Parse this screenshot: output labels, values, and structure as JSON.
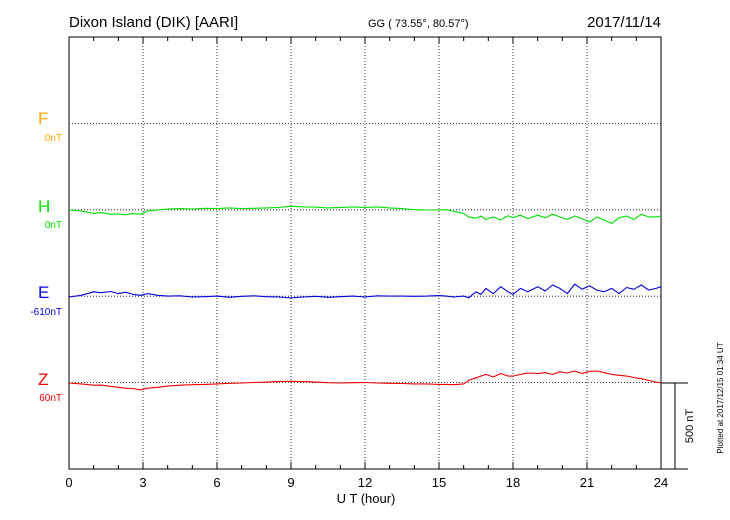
{
  "header": {
    "station": "Dixon Island (DIK)  [AARI]",
    "coords": "GG ( 73.55°,  80.57°)",
    "date": "2017/11/14"
  },
  "plotted_note": "Plotted at 2017/12/15 01:34 UT",
  "scale_label": "500 nT",
  "colors": {
    "F": "#ffa500",
    "H": "#00e000",
    "E": "#0000dd",
    "Z": "#ee0000"
  },
  "chart_data": {
    "type": "line",
    "xlabel": "U T (hour)",
    "xlim": [
      0,
      24
    ],
    "x_ticks": [
      "0",
      "3",
      "6",
      "9",
      "12",
      "15",
      "18",
      "21",
      "24"
    ],
    "grid": true,
    "scale_bar_nT": 500,
    "components": [
      {
        "name": "F",
        "baseline": "0nT",
        "color": "#ffa500",
        "values": []
      },
      {
        "name": "H",
        "baseline": "0nT",
        "color": "#00e000"
      },
      {
        "name": "E",
        "baseline": "-610nT",
        "color": "#0000dd"
      },
      {
        "name": "Z",
        "baseline": "60nT",
        "color": "#ee0000"
      }
    ],
    "series": [
      {
        "name": "H",
        "color": "#00e000",
        "x": [
          0,
          0.5,
          1,
          1.3,
          1.7,
          2,
          2.3,
          2.6,
          2.9,
          3.2,
          3.6,
          4,
          4.5,
          5,
          5.5,
          6,
          6.5,
          7,
          7.5,
          8,
          8.5,
          9,
          9.5,
          10,
          10.5,
          11,
          11.5,
          12,
          12.5,
          13,
          13.5,
          14,
          14.5,
          15,
          15.3,
          15.6,
          16,
          16.2,
          16.5,
          16.7,
          16.9,
          17.2,
          17.5,
          17.8,
          18,
          18.3,
          18.6,
          19,
          19.3,
          19.6,
          19.9,
          20.2,
          20.5,
          20.8,
          21.1,
          21.4,
          21.7,
          22,
          22.3,
          22.6,
          22.9,
          23.2,
          23.5,
          23.8,
          24
        ],
        "values": [
          0,
          -5,
          -20,
          -15,
          -25,
          -22,
          -28,
          -20,
          -25,
          -5,
          0,
          5,
          8,
          6,
          10,
          8,
          12,
          8,
          10,
          12,
          15,
          22,
          18,
          17,
          12,
          15,
          18,
          15,
          18,
          12,
          8,
          2,
          0,
          0,
          2,
          -8,
          -20,
          -40,
          -48,
          -35,
          -55,
          -40,
          -58,
          -33,
          -45,
          -30,
          -50,
          -30,
          -45,
          -25,
          -40,
          -55,
          -35,
          -50,
          -70,
          -40,
          -60,
          -78,
          -45,
          -35,
          -55,
          -25,
          -40,
          -40,
          -35
        ]
      },
      {
        "name": "E",
        "color": "#0000dd",
        "x": [
          0,
          0.5,
          1,
          1.3,
          1.7,
          2,
          2.3,
          2.6,
          2.9,
          3.2,
          3.6,
          4,
          4.5,
          5,
          5.5,
          6,
          6.5,
          7,
          7.5,
          8,
          8.5,
          9,
          9.5,
          10,
          10.5,
          11,
          11.5,
          12,
          12.5,
          13,
          13.5,
          14,
          14.5,
          15,
          15.3,
          15.6,
          16,
          16.2,
          16.5,
          16.7,
          16.9,
          17.2,
          17.5,
          17.8,
          18,
          18.3,
          18.6,
          19,
          19.3,
          19.6,
          19.9,
          20.2,
          20.5,
          20.8,
          21.1,
          21.4,
          21.7,
          22,
          22.3,
          22.6,
          22.9,
          23.2,
          23.5,
          23.8,
          24
        ],
        "values": [
          -610,
          -600,
          -580,
          -585,
          -578,
          -590,
          -582,
          -595,
          -600,
          -590,
          -600,
          -605,
          -603,
          -610,
          -608,
          -605,
          -612,
          -606,
          -603,
          -608,
          -610,
          -615,
          -610,
          -606,
          -612,
          -608,
          -605,
          -610,
          -603,
          -605,
          -605,
          -606,
          -605,
          -602,
          -605,
          -610,
          -605,
          -615,
          -580,
          -595,
          -560,
          -590,
          -550,
          -580,
          -595,
          -560,
          -580,
          -550,
          -575,
          -540,
          -560,
          -590,
          -535,
          -565,
          -545,
          -570,
          -580,
          -560,
          -590,
          -555,
          -565,
          -540,
          -570,
          -560,
          -550
        ]
      },
      {
        "name": "Z",
        "color": "#ee0000",
        "x": [
          0,
          0.5,
          1,
          1.3,
          1.7,
          2,
          2.3,
          2.6,
          2.9,
          3.2,
          3.6,
          4,
          4.5,
          5,
          5.5,
          6,
          6.5,
          7,
          7.5,
          8,
          8.5,
          9,
          9.5,
          10,
          10.5,
          11,
          11.5,
          12,
          12.5,
          13,
          13.5,
          14,
          14.5,
          15,
          15.3,
          15.6,
          16,
          16.2,
          16.5,
          16.7,
          16.9,
          17.2,
          17.5,
          17.8,
          18,
          18.3,
          18.6,
          19,
          19.3,
          19.6,
          19.9,
          20.2,
          20.5,
          20.8,
          21.1,
          21.4,
          21.7,
          22,
          22.3,
          22.6,
          22.9,
          23.2,
          23.5,
          23.8,
          24
        ],
        "values": [
          60,
          55,
          47,
          48,
          40,
          35,
          30,
          28,
          20,
          30,
          35,
          42,
          47,
          50,
          52,
          55,
          58,
          60,
          63,
          65,
          68,
          70,
          68,
          65,
          62,
          60,
          62,
          63,
          60,
          58,
          57,
          55,
          55,
          52,
          52,
          50,
          55,
          75,
          90,
          100,
          110,
          95,
          115,
          100,
          100,
          110,
          118,
          115,
          120,
          110,
          125,
          118,
          130,
          115,
          128,
          130,
          120,
          110,
          105,
          100,
          92,
          85,
          75,
          65,
          60
        ]
      }
    ]
  }
}
